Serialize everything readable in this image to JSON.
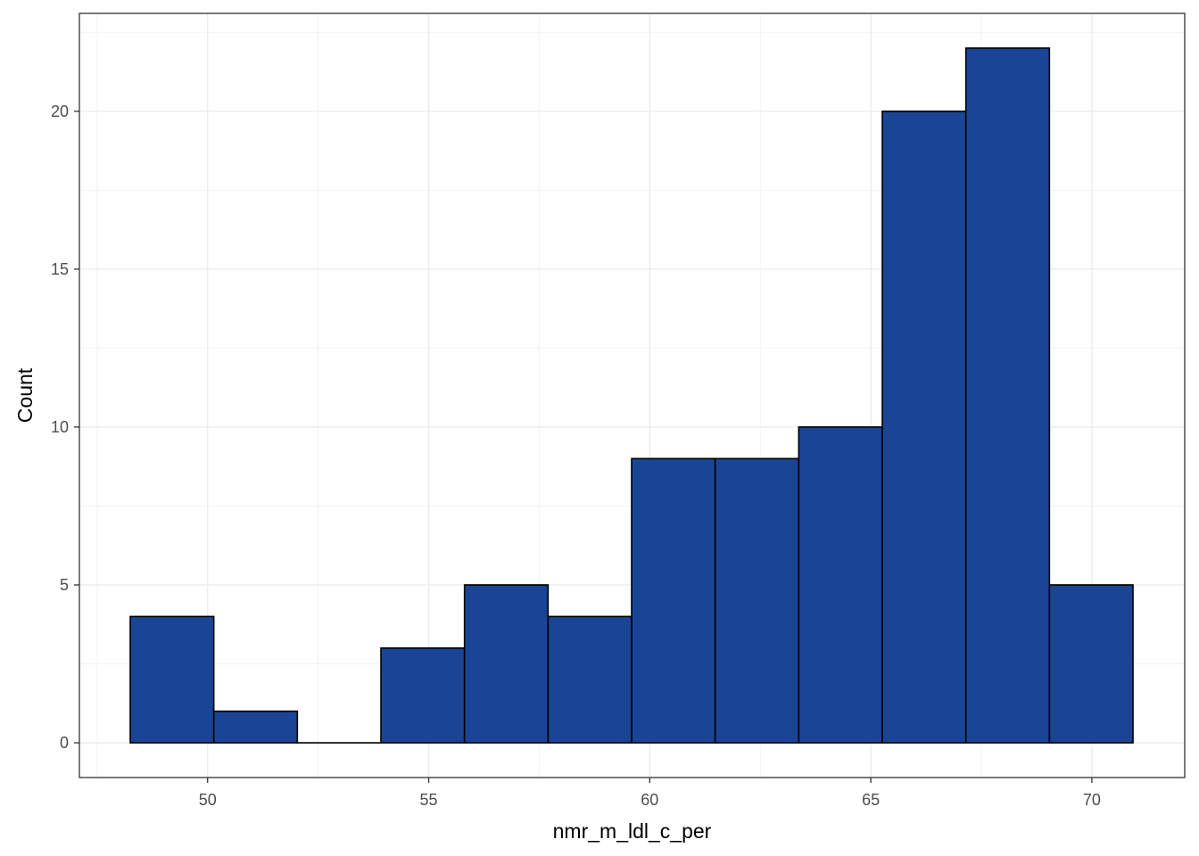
{
  "chart_data": {
    "type": "bar",
    "subtype": "histogram",
    "title": "",
    "xlabel": "nmr_m_ldl_c_per",
    "ylabel": "Count",
    "xlim": [
      47.1,
      72.1
    ],
    "ylim": [
      -1.1,
      23.1
    ],
    "xticks": [
      50,
      55,
      60,
      65,
      70
    ],
    "yticks": [
      0,
      5,
      10,
      15,
      20
    ],
    "grid": true,
    "bins": [
      {
        "x0": 48.25,
        "x1": 50.14,
        "count": 4
      },
      {
        "x0": 50.14,
        "x1": 52.03,
        "count": 1
      },
      {
        "x0": 52.03,
        "x1": 53.92,
        "count": 0
      },
      {
        "x0": 53.92,
        "x1": 55.81,
        "count": 3
      },
      {
        "x0": 55.81,
        "x1": 57.7,
        "count": 5
      },
      {
        "x0": 57.7,
        "x1": 59.59,
        "count": 4
      },
      {
        "x0": 59.59,
        "x1": 61.48,
        "count": 9
      },
      {
        "x0": 61.48,
        "x1": 63.37,
        "count": 9
      },
      {
        "x0": 63.37,
        "x1": 65.26,
        "count": 10
      },
      {
        "x0": 65.26,
        "x1": 67.15,
        "count": 20
      },
      {
        "x0": 67.15,
        "x1": 69.04,
        "count": 22
      },
      {
        "x0": 69.04,
        "x1": 70.93,
        "count": 5
      }
    ],
    "colors": {
      "bar_fill": "#1a4496",
      "bar_stroke": "#000000",
      "panel_border": "#333333",
      "grid_major": "#ebebeb",
      "grid_minor": "#f3f3f3"
    }
  }
}
